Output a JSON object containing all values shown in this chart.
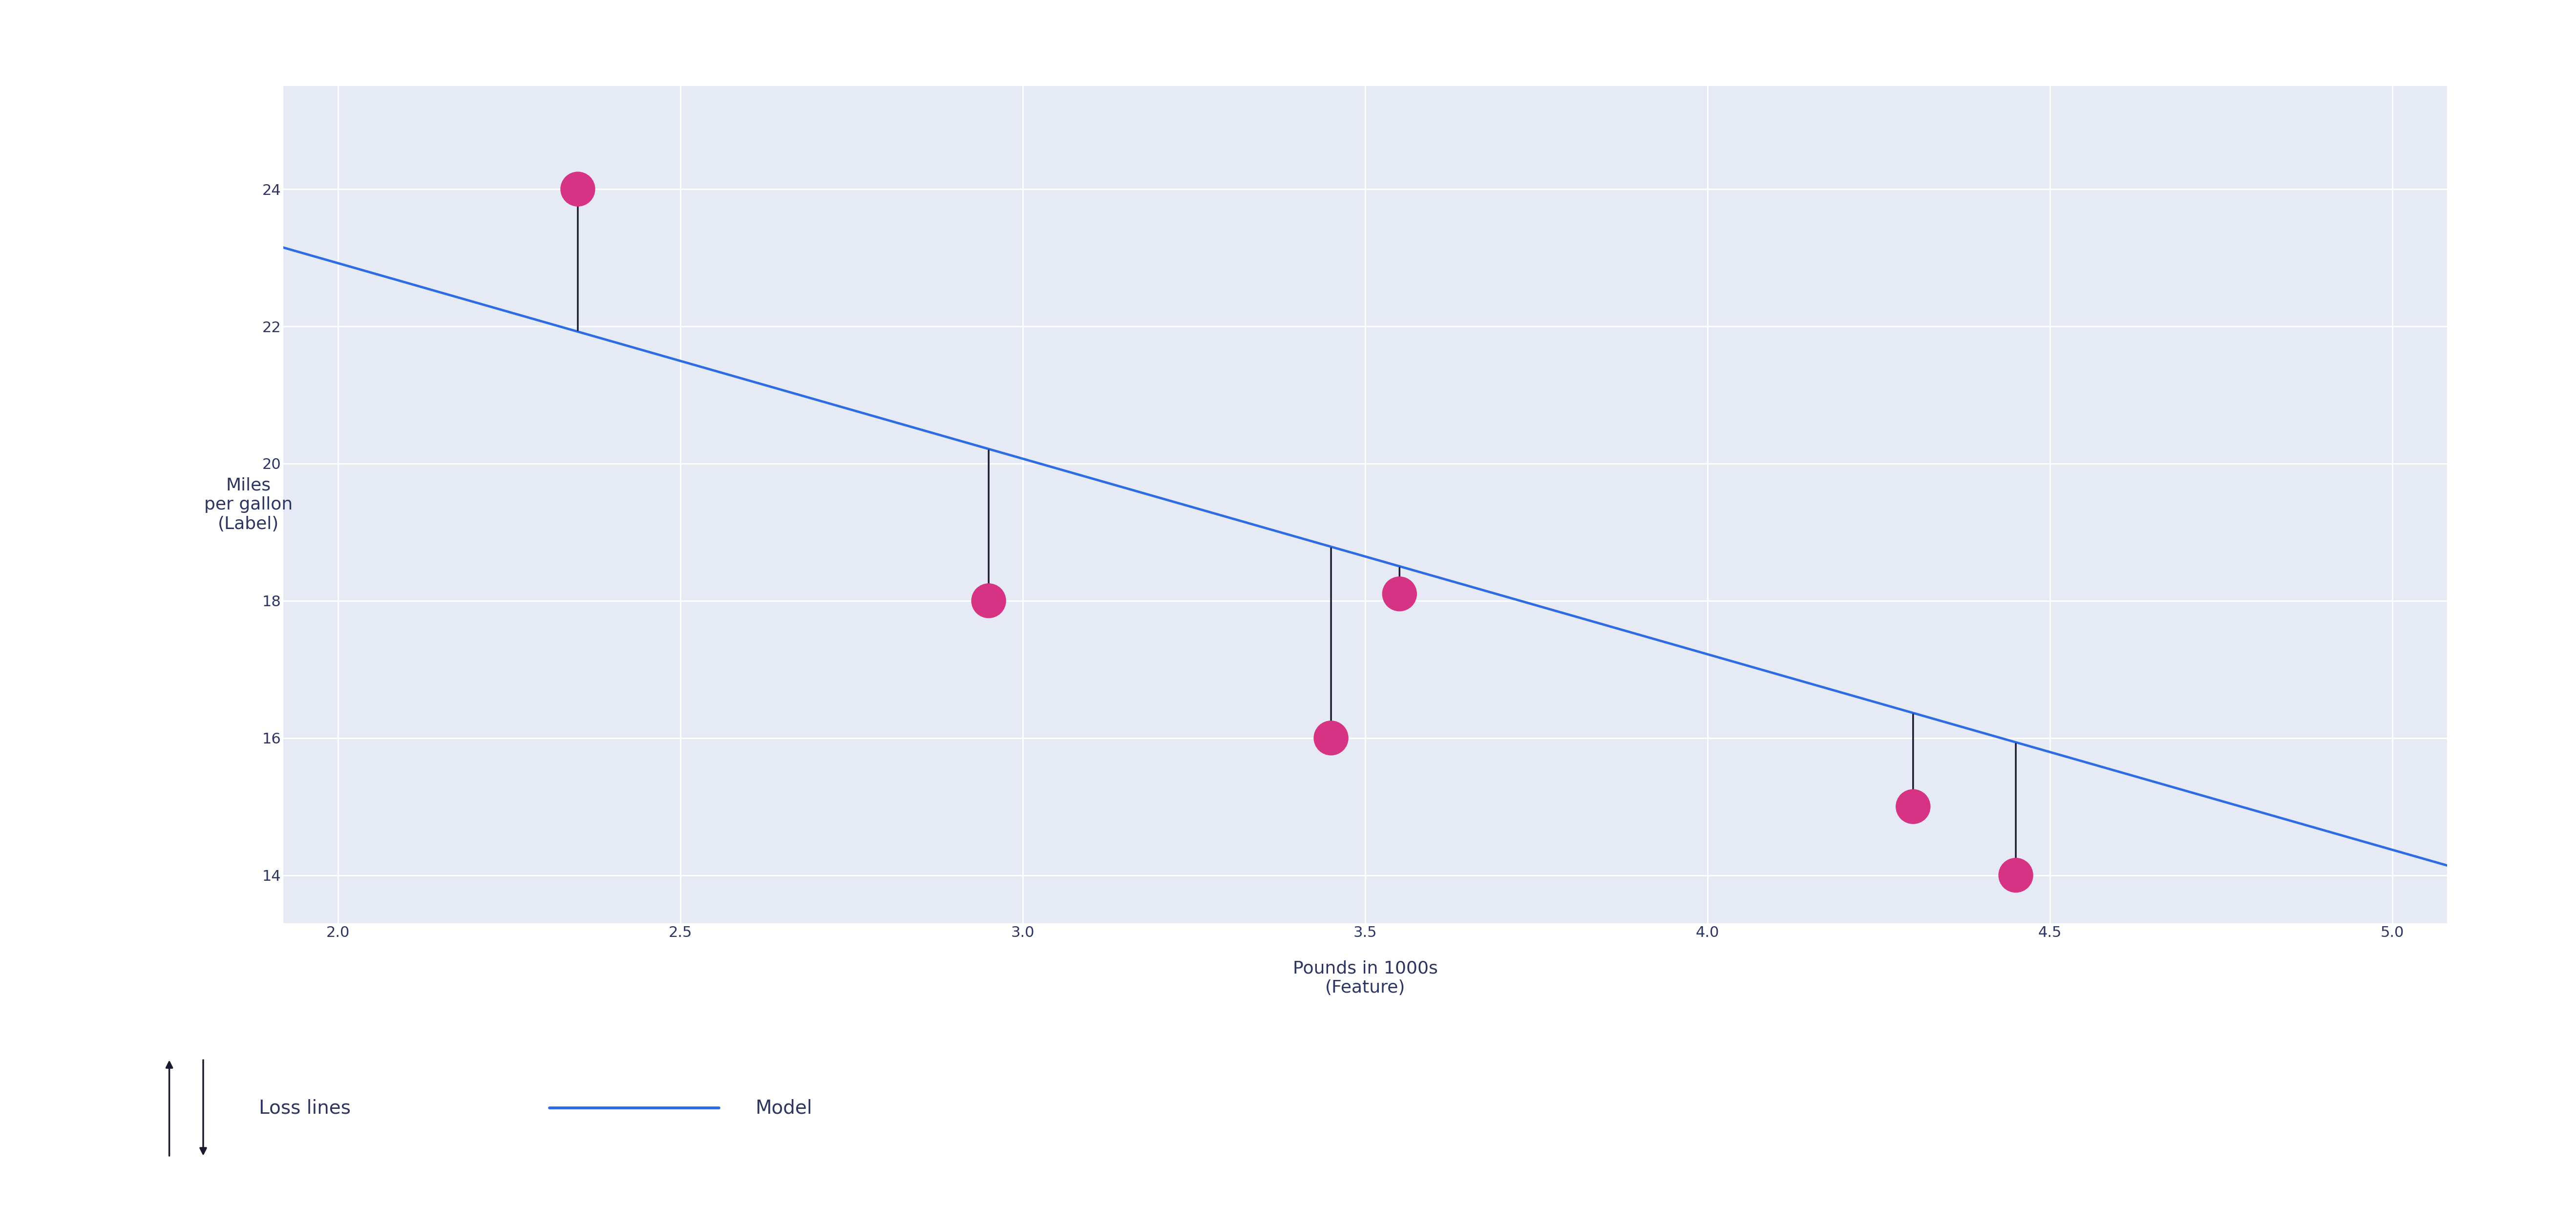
{
  "scatter_x": [
    2.35,
    2.95,
    3.45,
    3.55,
    4.3,
    4.45
  ],
  "scatter_y": [
    24.0,
    18.0,
    16.0,
    18.1,
    15.0,
    14.0
  ],
  "line_x_start": 1.92,
  "line_x_end": 5.08,
  "line_slope": -2.85,
  "line_intercept": 28.62,
  "x_label": "Pounds in 1000s\n(Feature)",
  "y_label": "Miles\nper gallon\n(Label)",
  "xlim": [
    1.92,
    5.08
  ],
  "ylim": [
    13.3,
    25.5
  ],
  "xticks": [
    2,
    2.5,
    3,
    3.5,
    4,
    4.5,
    5
  ],
  "yticks": [
    14,
    16,
    18,
    20,
    22,
    24
  ],
  "bg_color": "#e5eaf5",
  "fig_bg_color": "#ffffff",
  "line_color": "#2e6be6",
  "scatter_color": "#d63384",
  "arrow_color": "#1a1a2e",
  "legend_loss_label": "Loss lines",
  "legend_model_label": "Model",
  "tick_label_color": "#2d3561",
  "axis_label_color": "#2d3561",
  "scatter_size": 120,
  "line_width": 3.5,
  "arrow_lw": 2.5,
  "tick_fontsize": 22,
  "label_fontsize": 26,
  "legend_fontsize": 28
}
